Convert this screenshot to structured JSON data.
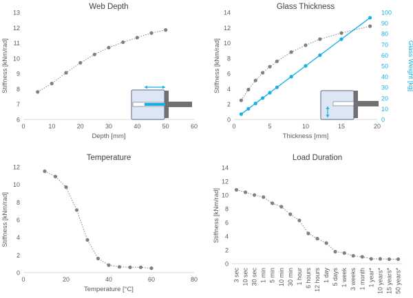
{
  "colors": {
    "grey_series": "#808080",
    "blue_series": "#18b0e0",
    "axis": "#d9d9d9",
    "text": "#595959",
    "title": "#404040"
  },
  "chart_data": [
    {
      "type": "line",
      "title": "Web Depth",
      "xlabel": "Depth [mm]",
      "ylabel": "Stiffness [kNm/rad]",
      "xlim": [
        0,
        60
      ],
      "ylim": [
        6,
        13
      ],
      "xticks": [
        0,
        10,
        20,
        30,
        40,
        50,
        60
      ],
      "yticks": [
        6,
        7,
        8,
        9,
        10,
        11,
        12,
        13
      ],
      "series": [
        {
          "name": "Stiffness",
          "axis": "left",
          "color": "#808080",
          "x": [
            5,
            10,
            15,
            20,
            25,
            30,
            35,
            40,
            45,
            50
          ],
          "y": [
            7.8,
            8.35,
            9.05,
            9.7,
            10.25,
            10.7,
            11.05,
            11.35,
            11.65,
            11.85
          ]
        }
      ]
    },
    {
      "type": "line",
      "title": "Glass Thickness",
      "xlabel": "Thickness [mm]",
      "ylabel": "Stiffness [kNm/rad]",
      "ylabel_right": "Glass Weight [kg]",
      "xlim": [
        0,
        20
      ],
      "ylim": [
        0,
        14
      ],
      "ylim_right": [
        0,
        100
      ],
      "xticks": [
        0,
        5,
        10,
        15,
        20
      ],
      "yticks": [
        0,
        2,
        4,
        6,
        8,
        10,
        12,
        14
      ],
      "yticks_right": [
        0,
        10,
        20,
        30,
        40,
        50,
        60,
        70,
        80,
        90,
        100
      ],
      "series": [
        {
          "name": "Stiffness",
          "axis": "left",
          "color": "#808080",
          "x": [
            1,
            2,
            3,
            4,
            5,
            6,
            8,
            10,
            12,
            15,
            19
          ],
          "y": [
            2.5,
            3.9,
            5.1,
            6.1,
            6.9,
            7.6,
            8.8,
            9.7,
            10.5,
            11.3,
            12.2
          ]
        },
        {
          "name": "Glass Weight",
          "axis": "right",
          "color": "#18b0e0",
          "x": [
            1,
            2,
            3,
            4,
            5,
            6,
            8,
            10,
            12,
            15,
            19
          ],
          "y": [
            5,
            10,
            15,
            20,
            25,
            30,
            40,
            50,
            60,
            75,
            95
          ]
        }
      ]
    },
    {
      "type": "line",
      "title": "Temperature",
      "xlabel": "Temperature [°C]",
      "ylabel": "Stiffness [kNm/rad]",
      "xlim": [
        0,
        80
      ],
      "ylim": [
        0,
        12
      ],
      "xticks": [
        0,
        20,
        40,
        60,
        80
      ],
      "yticks": [
        0,
        2,
        4,
        6,
        8,
        10,
        12
      ],
      "series": [
        {
          "name": "Stiffness",
          "axis": "left",
          "color": "#808080",
          "x": [
            10,
            15,
            20,
            25,
            30,
            35,
            40,
            45,
            50,
            55,
            60
          ],
          "y": [
            11.5,
            10.9,
            9.7,
            7.1,
            3.7,
            1.6,
            0.85,
            0.65,
            0.6,
            0.6,
            0.5
          ]
        }
      ]
    },
    {
      "type": "line",
      "title": "Load Duration",
      "xlabel": "",
      "ylabel": "Stiffness [kNm/rad]",
      "ylim": [
        0,
        14
      ],
      "yticks": [
        0,
        2,
        4,
        6,
        8,
        10,
        12,
        14
      ],
      "categories": [
        "3 sec",
        "10 sec",
        "30 sec",
        "1 min",
        "5 min",
        "10 min",
        "30 min",
        "1 hour",
        "6 hours",
        "12 hours",
        "1 day",
        "5 days",
        "1 week",
        "3 weeks",
        "1 month",
        "1 year*",
        "10 years*",
        "15 years*",
        "50 years*"
      ],
      "series": [
        {
          "name": "Stiffness",
          "axis": "left",
          "color": "#808080",
          "values": [
            10.75,
            10.4,
            10.0,
            9.7,
            8.8,
            8.3,
            7.2,
            6.3,
            4.4,
            3.65,
            3.0,
            1.75,
            1.55,
            1.15,
            1.0,
            0.7,
            0.7,
            0.65,
            0.65
          ]
        }
      ]
    }
  ]
}
